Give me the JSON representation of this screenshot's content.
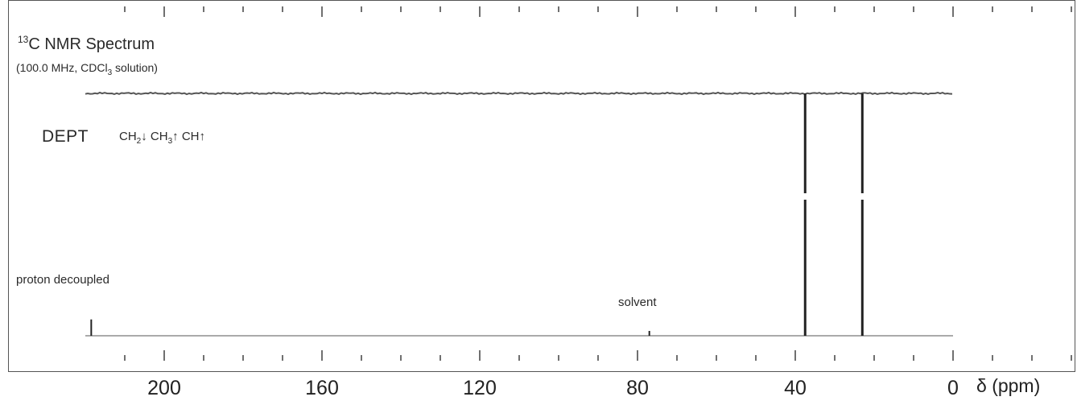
{
  "chart_data": {
    "type": "line",
    "title": "13C NMR Spectrum",
    "title_parts": {
      "sup": "13",
      "text": "C NMR Spectrum"
    },
    "subtitle": "(100.0 MHz, CDCl3 solution)",
    "subtitle_parts": {
      "before": "(100.0 MHz, CDCl",
      "sub": "3",
      "after": " solution)"
    },
    "xlabel": "δ (ppm)",
    "xlim": [
      220,
      0
    ],
    "x_reversed": true,
    "x_ticks": [
      200,
      160,
      120,
      80,
      40,
      0
    ],
    "x_minor_step": 10,
    "grid": false,
    "legend": "",
    "series": [
      {
        "name": "DEPT",
        "label": "DEPT",
        "key": "CH2↓ CH3↑ CH↑",
        "key_parts": [
          {
            "text": "CH",
            "sub": "2",
            "arrow": "↓"
          },
          {
            "text": "CH",
            "sub": "3",
            "arrow": "↑"
          },
          {
            "text": "CH",
            "sub": "",
            "arrow": "↑"
          }
        ],
        "peaks": [
          {
            "x": 37.5,
            "intensity": -1,
            "direction": "down"
          },
          {
            "x": 23.0,
            "intensity": -1,
            "direction": "down"
          }
        ]
      },
      {
        "name": "proton decoupled",
        "label": "proton decoupled",
        "peaks": [
          {
            "x": 218.5,
            "intensity": 0.12
          },
          {
            "x": 77.0,
            "intensity": 0.03,
            "annotation": "solvent"
          },
          {
            "x": 37.5,
            "intensity": 1.0
          },
          {
            "x": 23.0,
            "intensity": 1.0
          }
        ]
      }
    ],
    "annotations": [
      {
        "text": "solvent",
        "x": 77.0
      }
    ]
  }
}
